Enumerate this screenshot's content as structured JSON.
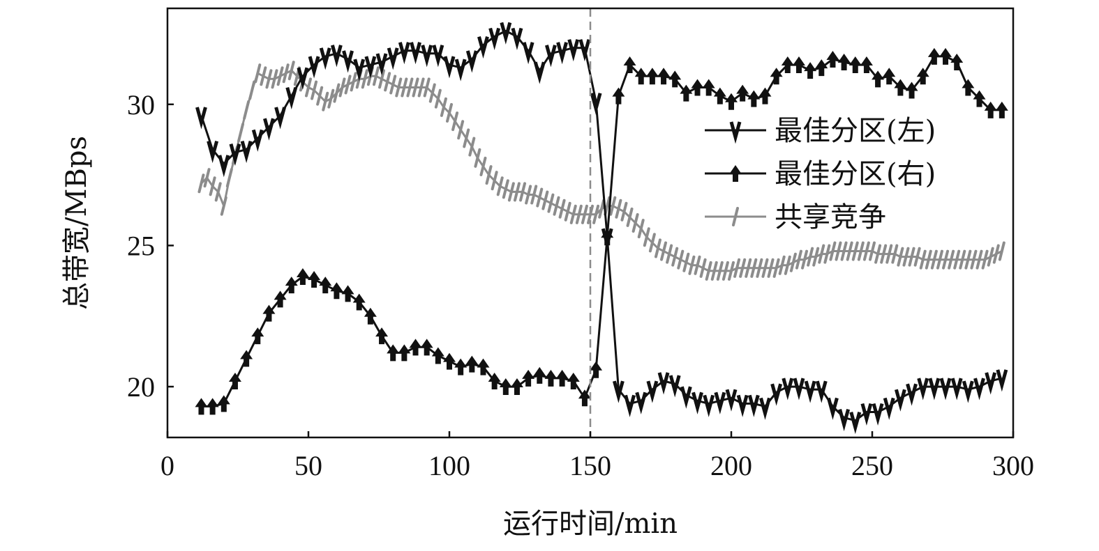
{
  "chart_data": {
    "type": "line",
    "title": "",
    "xlabel": "运行时间/min",
    "ylabel": "总带宽/MBps",
    "xlim": [
      0,
      300
    ],
    "ylim": [
      18.2,
      33.4
    ],
    "xticks": [
      0,
      50,
      100,
      150,
      200,
      250,
      300
    ],
    "yticks": [
      20,
      25,
      30
    ],
    "grid": false,
    "legend_position": "right",
    "vline_x": 150,
    "series": [
      {
        "name": "最佳分区(左)",
        "color": "#111111",
        "marker": "v-icon",
        "x": [
          12,
          16,
          20,
          24,
          28,
          32,
          36,
          40,
          44,
          48,
          52,
          56,
          60,
          64,
          68,
          72,
          76,
          80,
          84,
          88,
          92,
          96,
          100,
          104,
          108,
          112,
          116,
          120,
          124,
          128,
          132,
          136,
          140,
          144,
          148,
          152,
          156,
          160,
          164,
          168,
          172,
          176,
          180,
          184,
          188,
          192,
          196,
          200,
          204,
          208,
          212,
          216,
          220,
          224,
          228,
          232,
          236,
          240,
          244,
          248,
          252,
          256,
          260,
          264,
          268,
          272,
          276,
          280,
          284,
          288,
          292,
          296
        ],
        "y": [
          29.6,
          28.4,
          27.9,
          28.3,
          28.4,
          28.8,
          29.2,
          29.6,
          30.3,
          31.0,
          31.4,
          31.7,
          31.8,
          31.6,
          31.3,
          31.4,
          31.5,
          31.7,
          31.9,
          31.9,
          31.8,
          31.8,
          31.4,
          31.3,
          31.6,
          32.1,
          32.4,
          32.6,
          32.4,
          31.9,
          31.2,
          31.8,
          31.9,
          32.0,
          32.0,
          30.1,
          25.3,
          19.9,
          19.4,
          19.5,
          19.9,
          20.2,
          20.1,
          19.7,
          19.5,
          19.4,
          19.5,
          19.6,
          19.4,
          19.4,
          19.3,
          19.8,
          20.0,
          20.0,
          19.9,
          19.9,
          19.3,
          18.9,
          18.8,
          19.1,
          19.1,
          19.3,
          19.6,
          19.8,
          20.0,
          20.0,
          20.0,
          20.0,
          19.9,
          20.0,
          20.2,
          20.3
        ]
      },
      {
        "name": "最佳分区(右)",
        "color": "#111111",
        "marker": "arrow-up-icon",
        "x": [
          12,
          16,
          20,
          24,
          28,
          32,
          36,
          40,
          44,
          48,
          52,
          56,
          60,
          64,
          68,
          72,
          76,
          80,
          84,
          88,
          92,
          96,
          100,
          104,
          108,
          112,
          116,
          120,
          124,
          128,
          132,
          136,
          140,
          144,
          148,
          152,
          156,
          160,
          164,
          168,
          172,
          176,
          180,
          184,
          188,
          192,
          196,
          200,
          204,
          208,
          212,
          216,
          220,
          224,
          228,
          232,
          236,
          240,
          244,
          248,
          252,
          256,
          260,
          264,
          268,
          272,
          276,
          280,
          284,
          288,
          292,
          296
        ],
        "y": [
          19.3,
          19.3,
          19.4,
          20.2,
          21.0,
          21.8,
          22.6,
          23.1,
          23.6,
          23.9,
          23.8,
          23.6,
          23.4,
          23.3,
          23.0,
          22.5,
          21.8,
          21.2,
          21.2,
          21.4,
          21.4,
          21.1,
          20.9,
          20.7,
          20.8,
          20.7,
          20.2,
          20.0,
          20.0,
          20.3,
          20.4,
          20.3,
          20.3,
          20.2,
          19.6,
          20.6,
          25.3,
          30.3,
          31.4,
          31.0,
          31.0,
          31.0,
          30.9,
          30.4,
          30.6,
          30.6,
          30.3,
          30.1,
          30.4,
          30.2,
          30.3,
          31.0,
          31.4,
          31.4,
          31.2,
          31.3,
          31.6,
          31.5,
          31.4,
          31.4,
          30.9,
          31.0,
          30.6,
          30.5,
          31.0,
          31.7,
          31.7,
          31.5,
          30.6,
          30.2,
          29.8,
          29.8
        ]
      },
      {
        "name": "共享竞争",
        "color": "#8c8c8c",
        "marker": "slash-icon",
        "x": [
          12,
          14,
          16,
          18,
          20,
          22,
          24,
          26,
          28,
          30,
          32,
          34,
          36,
          38,
          40,
          42,
          44,
          46,
          48,
          50,
          52,
          54,
          56,
          58,
          60,
          62,
          64,
          66,
          68,
          70,
          72,
          74,
          76,
          78,
          80,
          82,
          84,
          86,
          88,
          90,
          92,
          94,
          96,
          98,
          100,
          102,
          104,
          106,
          108,
          110,
          112,
          114,
          116,
          118,
          120,
          122,
          124,
          126,
          128,
          130,
          132,
          134,
          136,
          138,
          140,
          142,
          144,
          146,
          148,
          150,
          152,
          154,
          156,
          158,
          160,
          162,
          164,
          166,
          168,
          170,
          172,
          174,
          176,
          178,
          180,
          182,
          184,
          186,
          188,
          190,
          192,
          194,
          196,
          198,
          200,
          202,
          204,
          206,
          208,
          210,
          212,
          214,
          216,
          218,
          220,
          222,
          224,
          226,
          228,
          230,
          232,
          234,
          236,
          238,
          240,
          242,
          244,
          246,
          248,
          250,
          252,
          254,
          256,
          258,
          260,
          262,
          264,
          266,
          268,
          270,
          272,
          274,
          276,
          278,
          280,
          282,
          284,
          286,
          288,
          290,
          292,
          294,
          296
        ],
        "y": [
          27.2,
          27.4,
          27.1,
          26.9,
          26.4,
          27.4,
          28.2,
          29.0,
          29.8,
          30.5,
          31.1,
          31.0,
          30.9,
          30.9,
          31.0,
          31.1,
          31.2,
          31.0,
          30.8,
          30.6,
          30.5,
          30.3,
          30.1,
          30.2,
          30.4,
          30.6,
          30.7,
          30.8,
          30.9,
          30.9,
          31.0,
          31.0,
          30.9,
          30.8,
          30.7,
          30.6,
          30.6,
          30.6,
          30.6,
          30.6,
          30.6,
          30.4,
          30.2,
          29.9,
          29.7,
          29.4,
          29.1,
          28.8,
          28.5,
          28.1,
          27.8,
          27.5,
          27.3,
          27.1,
          27.0,
          26.9,
          26.9,
          26.9,
          26.8,
          26.8,
          26.7,
          26.6,
          26.5,
          26.4,
          26.3,
          26.2,
          26.1,
          26.1,
          26.1,
          26.1,
          26.1,
          26.3,
          26.4,
          26.4,
          26.3,
          26.2,
          26.0,
          25.8,
          25.6,
          25.3,
          25.1,
          24.9,
          24.8,
          24.7,
          24.6,
          24.5,
          24.4,
          24.3,
          24.3,
          24.2,
          24.1,
          24.1,
          24.1,
          24.1,
          24.1,
          24.2,
          24.2,
          24.2,
          24.2,
          24.2,
          24.2,
          24.2,
          24.2,
          24.3,
          24.3,
          24.4,
          24.5,
          24.5,
          24.6,
          24.6,
          24.7,
          24.7,
          24.8,
          24.8,
          24.8,
          24.8,
          24.8,
          24.8,
          24.8,
          24.8,
          24.7,
          24.7,
          24.7,
          24.7,
          24.6,
          24.6,
          24.6,
          24.6,
          24.5,
          24.5,
          24.5,
          24.5,
          24.5,
          24.5,
          24.5,
          24.5,
          24.5,
          24.5,
          24.5,
          24.5,
          24.6,
          24.7,
          24.8
        ]
      }
    ]
  }
}
